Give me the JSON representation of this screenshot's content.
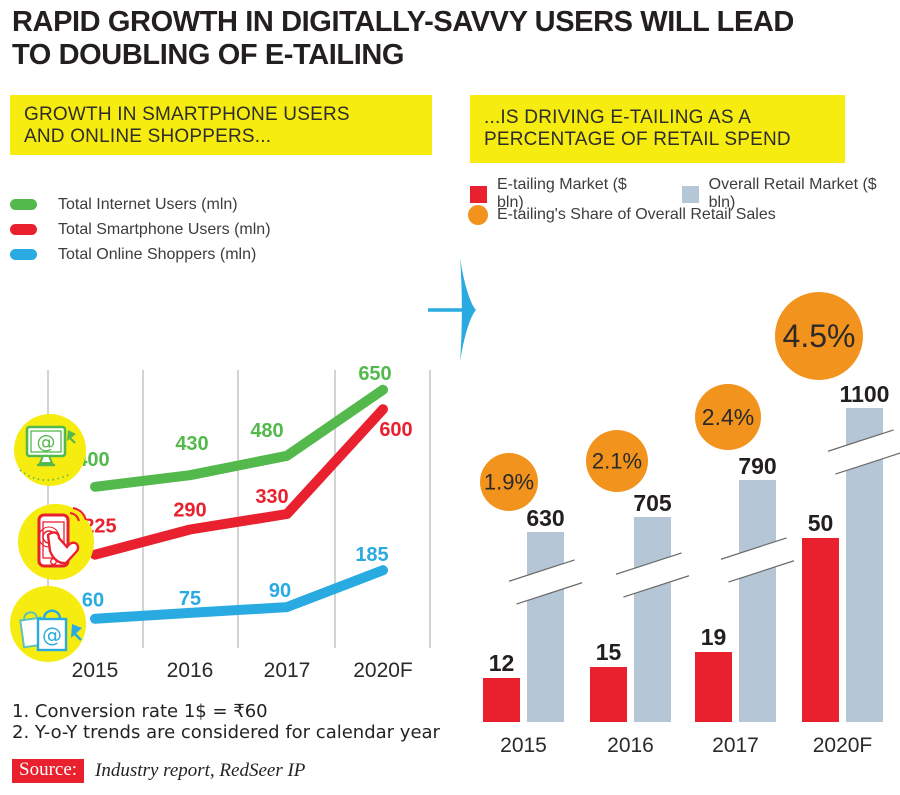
{
  "title": {
    "line1": "RAPID GROWTH IN DIGITALLY-SAVVY USERS WILL LEAD",
    "line2": "TO DOUBLING OF E-TAILING"
  },
  "colors": {
    "highlight_yellow": "#f7ec0f",
    "text_dark": "#231f20",
    "green": "#53b94c",
    "red": "#e9212e",
    "blue": "#29abe2",
    "orange": "#f2931e",
    "gray_blue": "#b5c6d6"
  },
  "left_panel": {
    "header": {
      "line1": "GROWTH IN SMARTPHONE USERS",
      "line2": "AND ONLINE SHOPPERS..."
    },
    "legend": [
      {
        "label": "Total Internet Users (mln)"
      },
      {
        "label": "Total Smartphone Users (mln)"
      },
      {
        "label": "Total Online Shoppers (mln)"
      }
    ]
  },
  "right_panel": {
    "header": {
      "line1": "...IS DRIVING E-TAILING AS A",
      "line2": "PERCENTAGE OF RETAIL SPEND"
    },
    "legend": [
      {
        "label": "E-tailing Market ($ bln)"
      },
      {
        "label": "Overall Retail Market ($ bln)"
      },
      {
        "label": "E-tailing's Share of Overall Retail Sales"
      }
    ]
  },
  "footnotes": [
    "1. Conversion rate 1$ = ₹60",
    "2. Y-o-Y trends are considered for calendar year"
  ],
  "source": {
    "label": "Source:",
    "text": "Industry report, RedSeer IP"
  },
  "chart_data": [
    {
      "type": "line",
      "title": "GROWTH IN SMARTPHONE USERS AND ONLINE SHOPPERS...",
      "categories": [
        "2015",
        "2016",
        "2017",
        "2020F"
      ],
      "series": [
        {
          "name": "Total Internet Users (mln)",
          "color": "#53b94c",
          "values": [
            400,
            430,
            480,
            650
          ]
        },
        {
          "name": "Total Smartphone Users (mln)",
          "color": "#e9212e",
          "values": [
            225,
            290,
            330,
            600
          ]
        },
        {
          "name": "Total Online Shoppers (mln)",
          "color": "#29abe2",
          "values": [
            60,
            75,
            90,
            185
          ]
        }
      ],
      "grid": "vertical-gridlines-only",
      "value_labels": true,
      "legend_position": "top-left"
    },
    {
      "type": "bar",
      "title": "...IS DRIVING E-TAILING AS A PERCENTAGE OF RETAIL SPEND",
      "categories": [
        "2015",
        "2016",
        "2017",
        "2020F"
      ],
      "series": [
        {
          "name": "E-tailing Market ($ bln)",
          "color": "#e9212e",
          "values": [
            12,
            15,
            19,
            50
          ]
        },
        {
          "name": "Overall Retail Market ($ bln)",
          "color": "#b5c6d6",
          "values": [
            630,
            705,
            790,
            1100
          ],
          "axis_break": true
        },
        {
          "name": "E-tailing's Share of Overall Retail Sales",
          "color": "#f2931e",
          "values": [
            1.9,
            2.1,
            2.4,
            4.5
          ],
          "labels": [
            "1.9%",
            "2.1%",
            "2.4%",
            "4.5%"
          ],
          "render": "bubble"
        }
      ],
      "value_labels": true,
      "legend_position": "top"
    }
  ]
}
